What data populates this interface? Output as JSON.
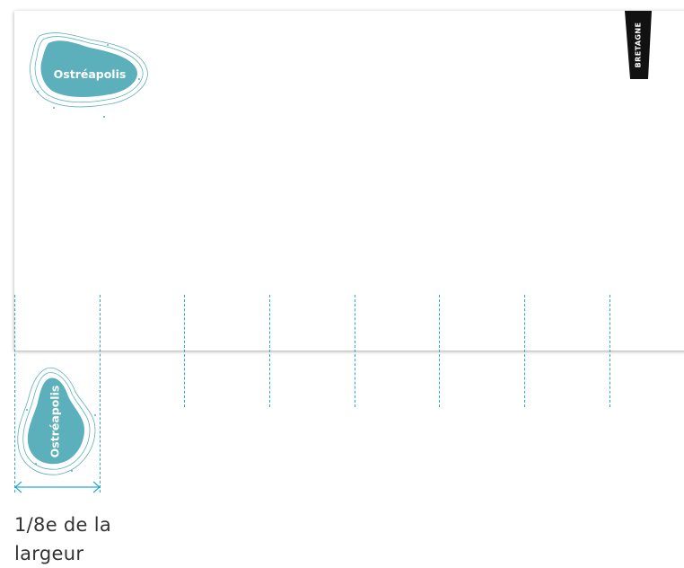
{
  "document": {
    "logo_name": "Ostréapolis",
    "brand_tag": "BRETAGNE",
    "caption_line1": "1/8e de la",
    "caption_line2": "largeur"
  },
  "colors": {
    "logo_fill": "#5bb0bb",
    "guide": "#29a9d6",
    "tag_bg": "#111111"
  },
  "icons": {
    "logo": "oyster-shape-logo",
    "brand": "bretagne-tag-icon",
    "measure": "double-arrow-measure-icon"
  }
}
